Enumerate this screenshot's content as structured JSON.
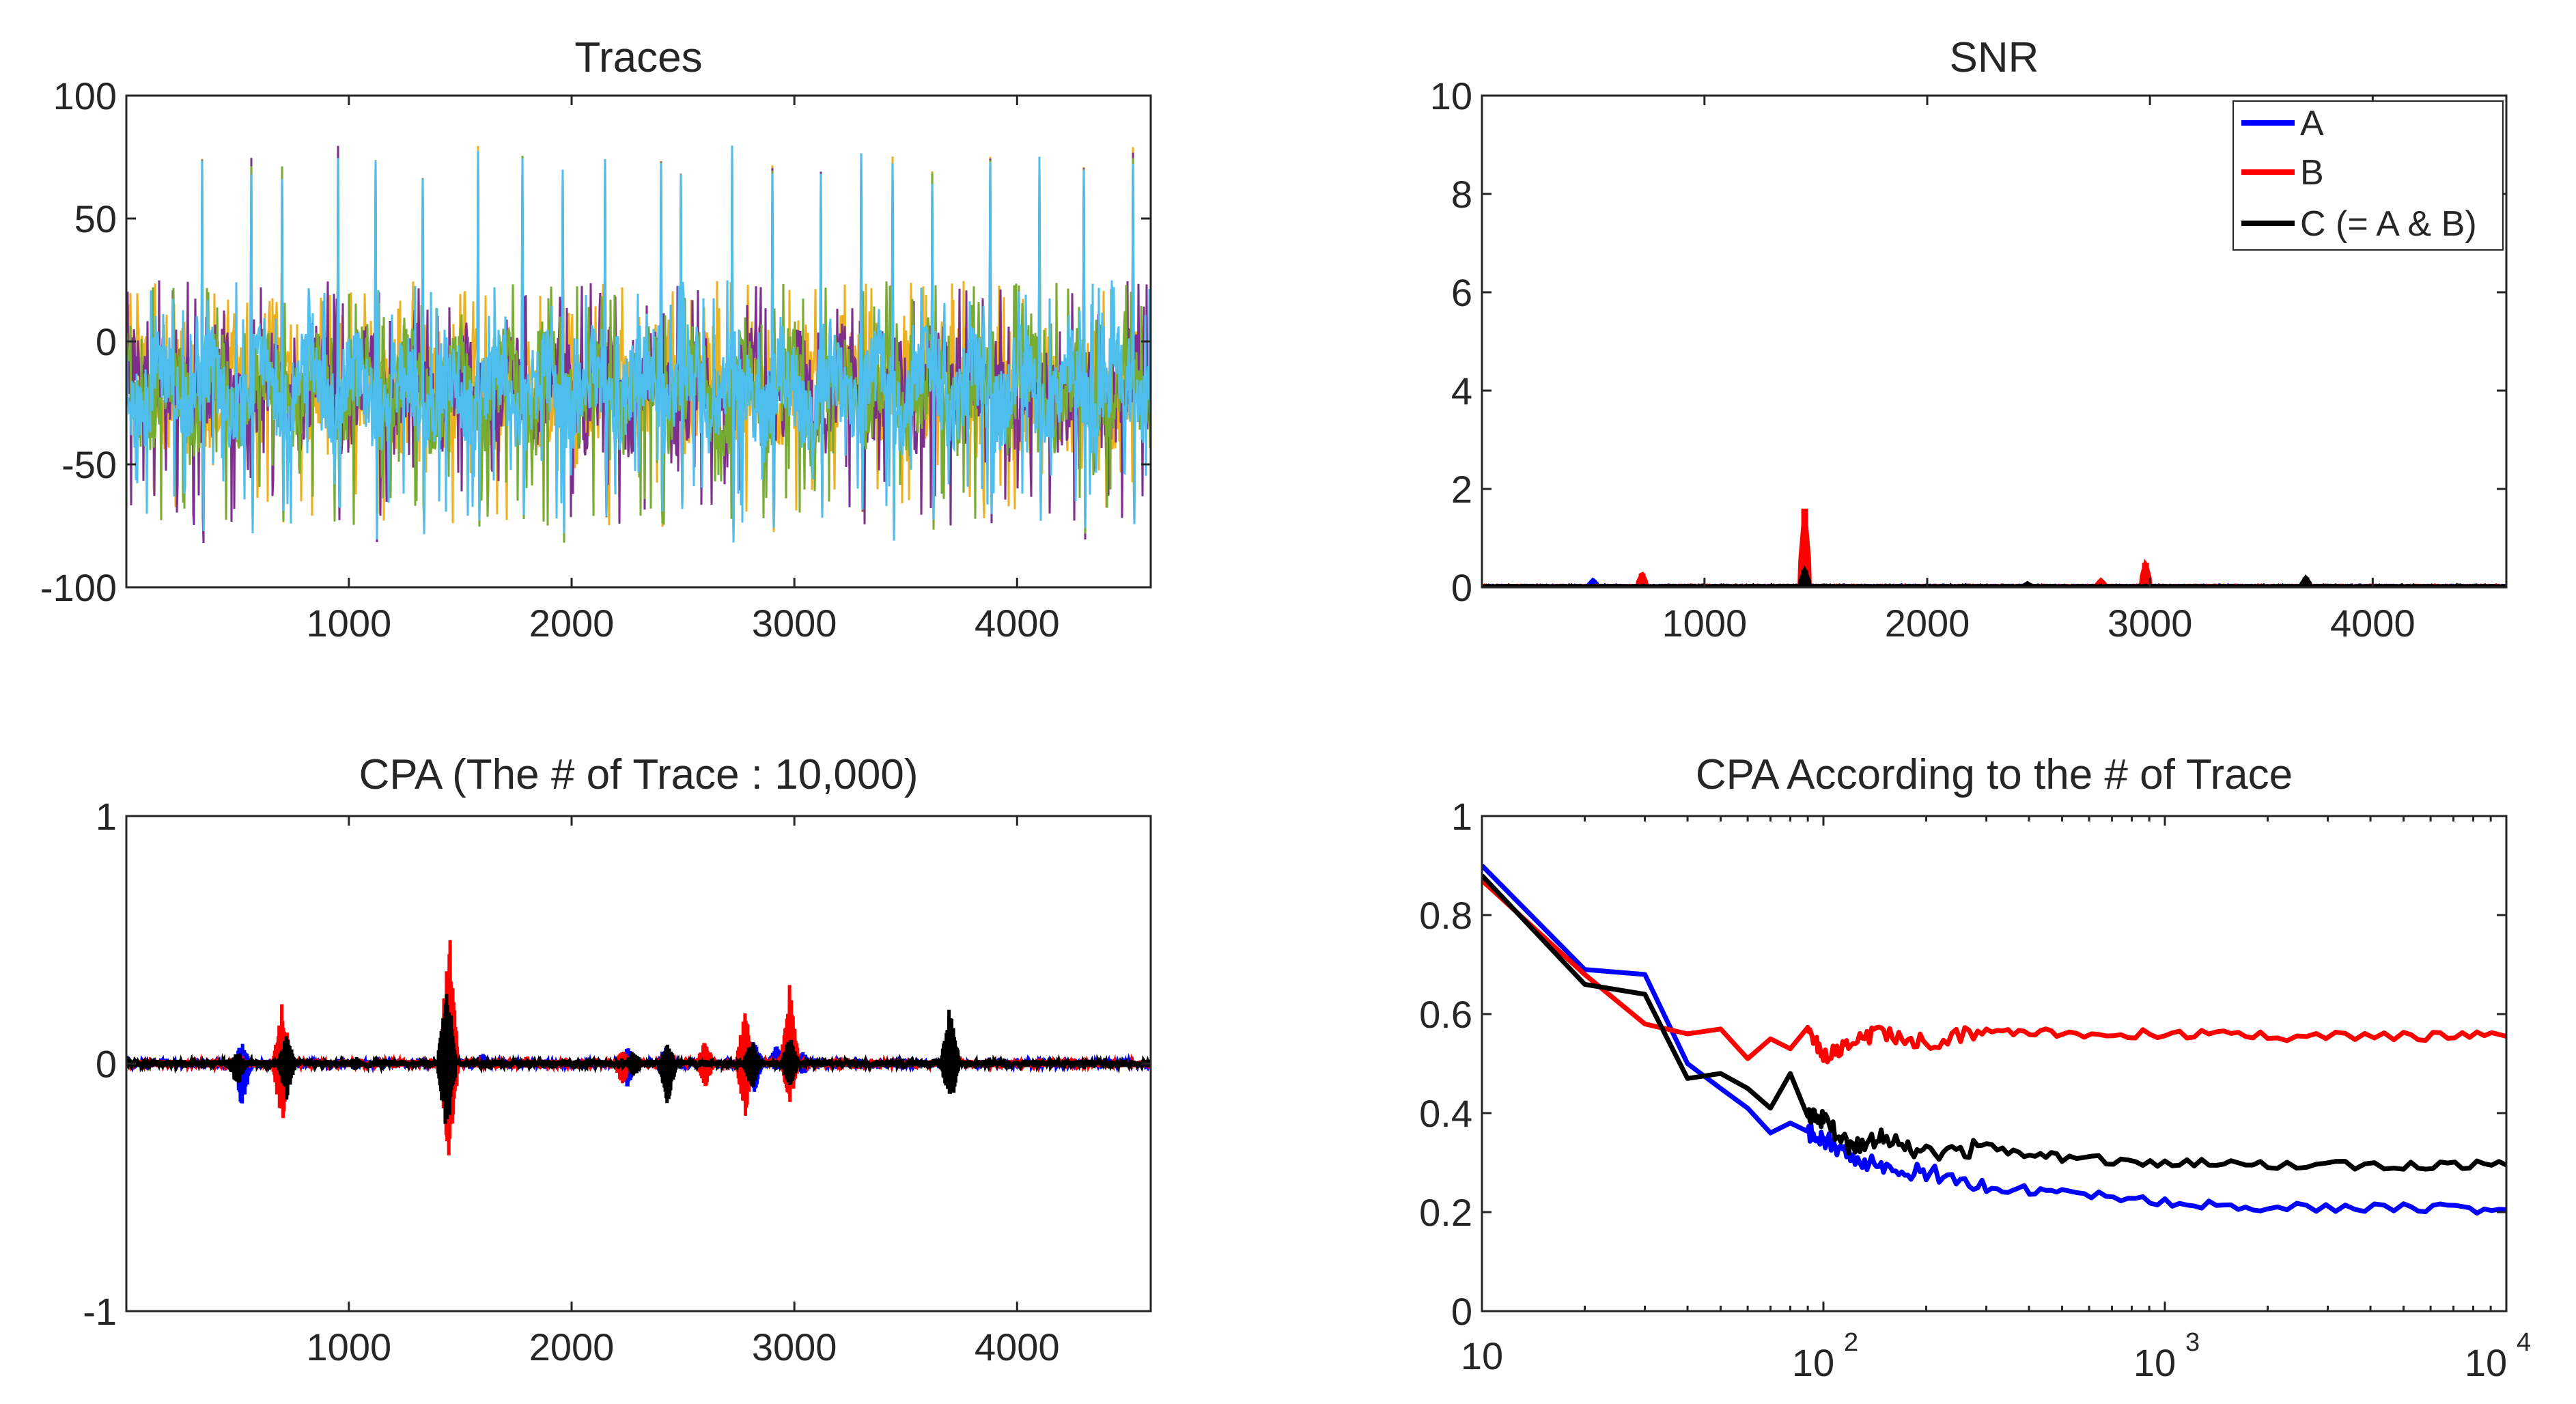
{
  "chart_data": [
    {
      "id": "traces",
      "type": "line",
      "title": "Traces",
      "xlabel": "",
      "ylabel": "",
      "xlim": [
        1,
        4600
      ],
      "ylim": [
        -100,
        100
      ],
      "xticks": [
        1000,
        2000,
        3000,
        4000
      ],
      "xtick_labels": [
        "1000",
        "2000",
        "3000",
        "4000"
      ],
      "yticks": [
        100,
        50,
        0,
        -50,
        -100
      ],
      "ytick_labels": [
        "100",
        "50",
        "0",
        "-50",
        "-100"
      ],
      "grid": false,
      "colors": [
        "#4DBEEE",
        "#77AC30",
        "#7E2F8E",
        "#EDB120"
      ],
      "description": "Many overlaid power traces (~4600 samples), baseline about -20, periodic spikes reaching about +75 and -80",
      "spike_samples": [
        340,
        560,
        700,
        950,
        1120,
        1330,
        1580,
        1780,
        1960,
        2150,
        2400,
        2490,
        2720,
        2900,
        3120,
        3300,
        3440,
        3620,
        3880,
        4100,
        4300,
        4520
      ],
      "spike_max": 80,
      "spike_min": -82,
      "baseline": -20
    },
    {
      "id": "snr",
      "type": "line",
      "title": "SNR",
      "xlim": [
        1,
        4600
      ],
      "ylim": [
        0,
        10
      ],
      "xticks": [
        1000,
        2000,
        3000,
        4000
      ],
      "xtick_labels": [
        "1000",
        "2000",
        "3000",
        "4000"
      ],
      "yticks": [
        10,
        8,
        6,
        4,
        2,
        0
      ],
      "ytick_labels": [
        "10",
        "8",
        "6",
        "4",
        "2",
        "0"
      ],
      "legend": {
        "placement": "top-right",
        "entries": [
          {
            "label": "A",
            "color": "#0000ff"
          },
          {
            "label": "B",
            "color": "#ff0000"
          },
          {
            "label": "C (= A & B)",
            "color": "#000000"
          }
        ]
      },
      "series": [
        {
          "name": "A",
          "color": "#0000ff",
          "peaks": [
            [
              500,
              0.15
            ],
            [
              1450,
              0.2
            ],
            [
              3700,
              0.1
            ]
          ]
        },
        {
          "name": "B",
          "color": "#ff0000",
          "peaks": [
            [
              720,
              0.28
            ],
            [
              1450,
              1.6
            ],
            [
              2780,
              0.15
            ],
            [
              2980,
              0.5
            ]
          ]
        },
        {
          "name": "C (= A & B)",
          "color": "#000000",
          "peaks": [
            [
              1450,
              0.35
            ],
            [
              2450,
              0.08
            ],
            [
              3700,
              0.2
            ]
          ]
        }
      ]
    },
    {
      "id": "cpa",
      "type": "line",
      "title": "CPA (The # of Trace : 10,000)",
      "xlim": [
        1,
        4600
      ],
      "ylim": [
        -1,
        1
      ],
      "xticks": [
        1000,
        2000,
        3000,
        4000
      ],
      "xtick_labels": [
        "1000",
        "2000",
        "3000",
        "4000"
      ],
      "yticks": [
        1,
        0,
        -1
      ],
      "ytick_labels": [
        "1",
        "0",
        "-1"
      ],
      "series": [
        {
          "name": "A",
          "color": "#0000ff",
          "bursts": [
            [
              520,
              0.09,
              -0.19
            ],
            [
              1450,
              0.35,
              -0.3
            ],
            [
              1600,
              0.05,
              -0.02
            ],
            [
              2250,
              0.08,
              -0.1
            ],
            [
              2420,
              0.07,
              -0.1
            ],
            [
              2820,
              0.1,
              -0.12
            ],
            [
              2920,
              0.08,
              -0.03
            ],
            [
              3040,
              0.05,
              -0.05
            ]
          ]
        },
        {
          "name": "B",
          "color": "#ff0000",
          "bursts": [
            [
              700,
              0.26,
              -0.26
            ],
            [
              1450,
              0.56,
              -0.42
            ],
            [
              1800,
              0.03,
              -0.02
            ],
            [
              2230,
              0.06,
              -0.09
            ],
            [
              2600,
              0.1,
              -0.1
            ],
            [
              2780,
              0.23,
              -0.23
            ],
            [
              2980,
              0.33,
              -0.17
            ]
          ]
        },
        {
          "name": "C (= A & B)",
          "color": "#000000",
          "bursts": [
            [
              500,
              0.05,
              -0.1
            ],
            [
              720,
              0.12,
              -0.15
            ],
            [
              1030,
              0.03,
              -0.03
            ],
            [
              1440,
              0.35,
              -0.32
            ],
            [
              2280,
              0.06,
              -0.06
            ],
            [
              2430,
              0.08,
              -0.18
            ],
            [
              2810,
              0.1,
              -0.11
            ],
            [
              2980,
              0.12,
              -0.1
            ],
            [
              3700,
              0.26,
              -0.19
            ]
          ]
        }
      ]
    },
    {
      "id": "cpa_vs_traces",
      "type": "line",
      "title": "CPA According to the # of Trace",
      "xscale": "log",
      "xlim": [
        10,
        10000
      ],
      "ylim": [
        0,
        1
      ],
      "xtick_base": [
        "10",
        "10",
        "10",
        "10"
      ],
      "xtick_exponents": [
        "",
        "2",
        "3",
        "4"
      ],
      "yticks": [
        1,
        0.8,
        0.6,
        0.4,
        0.2,
        0
      ],
      "ytick_labels": [
        "1",
        "0.8",
        "0.6",
        "0.4",
        "0.2",
        "0"
      ],
      "series": [
        {
          "name": "A",
          "color": "#0000ff",
          "x": [
            10,
            20,
            30,
            40,
            50,
            60,
            70,
            80,
            90,
            100,
            120,
            150,
            200,
            300,
            500,
            1000,
            2000,
            5000,
            10000
          ],
          "y": [
            0.9,
            0.69,
            0.68,
            0.5,
            0.45,
            0.41,
            0.36,
            0.38,
            0.36,
            0.35,
            0.31,
            0.29,
            0.28,
            0.25,
            0.24,
            0.22,
            0.21,
            0.21,
            0.205
          ]
        },
        {
          "name": "B",
          "color": "#ff0000",
          "x": [
            10,
            20,
            30,
            40,
            50,
            60,
            70,
            80,
            90,
            100,
            120,
            150,
            200,
            300,
            500,
            1000,
            2000,
            5000,
            10000
          ],
          "y": [
            0.87,
            0.68,
            0.58,
            0.56,
            0.57,
            0.51,
            0.55,
            0.53,
            0.57,
            0.51,
            0.55,
            0.56,
            0.54,
            0.57,
            0.56,
            0.56,
            0.555,
            0.555,
            0.555
          ]
        },
        {
          "name": "C (= A & B)",
          "color": "#000000",
          "x": [
            10,
            20,
            30,
            40,
            50,
            60,
            70,
            80,
            90,
            100,
            120,
            150,
            200,
            300,
            500,
            1000,
            2000,
            5000,
            10000
          ],
          "y": [
            0.88,
            0.66,
            0.64,
            0.47,
            0.48,
            0.45,
            0.41,
            0.48,
            0.39,
            0.39,
            0.33,
            0.35,
            0.32,
            0.33,
            0.31,
            0.3,
            0.295,
            0.295,
            0.295
          ]
        }
      ]
    }
  ]
}
